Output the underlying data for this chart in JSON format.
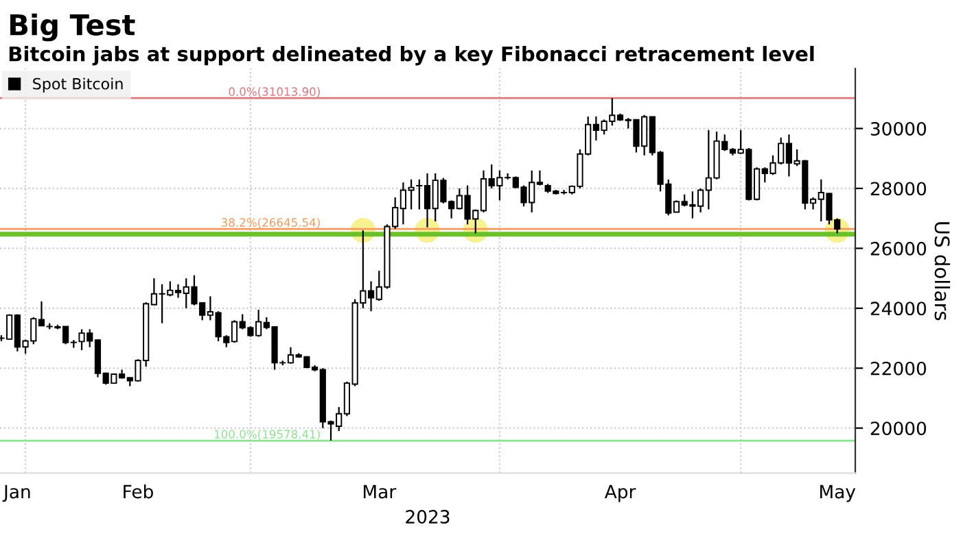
{
  "chart_data": {
    "type": "candlestick",
    "title": "Big Test",
    "subtitle": "Bitcoin jabs at support delineated by a key Fibonacci retracement level",
    "xlabel": "2023",
    "ylabel": "US dollars",
    "ylim": [
      18500,
      32000
    ],
    "yticks": [
      20000,
      22000,
      24000,
      26000,
      28000,
      30000
    ],
    "xlim": [
      "2023-01-27T20:00",
      "2023-05-14T06:00"
    ],
    "xticks": [
      {
        "value": "2023-01-30",
        "label": "Jan"
      },
      {
        "value": "2023-01-31",
        "label": null
      },
      {
        "value": "2023-02-14",
        "label": "Feb"
      },
      {
        "value": "2023-02-28",
        "label": null
      },
      {
        "value": "2023-03-16",
        "label": "Mar"
      },
      {
        "value": "2023-03-31",
        "label": null
      },
      {
        "value": "2023-04-15",
        "label": "Apr"
      },
      {
        "value": "2023-04-30",
        "label": null
      },
      {
        "value": "2023-05-12",
        "label": "May"
      }
    ],
    "grid": true,
    "legend": "top left",
    "ref_lines": [
      {
        "axis": "y",
        "value": 31013.9,
        "label": "0.0%(31013.90)",
        "color": "#d9777a"
      },
      {
        "axis": "y",
        "value": 26645.54,
        "label": "38.2%(26645.54)",
        "color": "#f29b5c"
      },
      {
        "axis": "y",
        "value": 26470,
        "label": null,
        "color": "#6cc02a"
      },
      {
        "axis": "y",
        "value": 19578.41,
        "label": "100.0%(19578.41)",
        "color": "#8fe28f"
      }
    ],
    "series": [
      {
        "name": "Spot Bitcoin",
        "color": "#000000",
        "x": [
          "2023-01-28",
          "2023-01-29",
          "2023-01-30",
          "2023-01-31",
          "2023-02-01",
          "2023-02-02",
          "2023-02-03",
          "2023-02-04",
          "2023-02-05",
          "2023-02-06",
          "2023-02-07",
          "2023-02-08",
          "2023-02-09",
          "2023-02-10",
          "2023-02-11",
          "2023-02-12",
          "2023-02-13",
          "2023-02-14",
          "2023-02-15",
          "2023-02-16",
          "2023-02-17",
          "2023-02-18",
          "2023-02-19",
          "2023-02-20",
          "2023-02-21",
          "2023-02-22",
          "2023-02-23",
          "2023-02-24",
          "2023-02-25",
          "2023-02-26",
          "2023-02-27",
          "2023-02-28",
          "2023-03-01",
          "2023-03-02",
          "2023-03-03",
          "2023-03-04",
          "2023-03-05",
          "2023-03-06",
          "2023-03-07",
          "2023-03-08",
          "2023-03-09",
          "2023-03-10",
          "2023-03-11",
          "2023-03-12",
          "2023-03-13",
          "2023-03-14",
          "2023-03-15",
          "2023-03-16",
          "2023-03-17",
          "2023-03-18",
          "2023-03-19",
          "2023-03-20",
          "2023-03-21",
          "2023-03-22",
          "2023-03-23",
          "2023-03-24",
          "2023-03-25",
          "2023-03-26",
          "2023-03-27",
          "2023-03-28",
          "2023-03-29",
          "2023-03-30",
          "2023-03-31",
          "2023-04-01",
          "2023-04-02",
          "2023-04-03",
          "2023-04-04",
          "2023-04-05",
          "2023-04-06",
          "2023-04-07",
          "2023-04-08",
          "2023-04-09",
          "2023-04-10",
          "2023-04-11",
          "2023-04-12",
          "2023-04-13",
          "2023-04-14",
          "2023-04-15",
          "2023-04-16",
          "2023-04-17",
          "2023-04-18",
          "2023-04-19",
          "2023-04-20",
          "2023-04-21",
          "2023-04-22",
          "2023-04-23",
          "2023-04-24",
          "2023-04-25",
          "2023-04-26",
          "2023-04-27",
          "2023-04-28",
          "2023-04-29",
          "2023-04-30",
          "2023-05-01",
          "2023-05-02",
          "2023-05-03",
          "2023-05-04",
          "2023-05-05",
          "2023-05-06",
          "2023-05-07",
          "2023-05-08",
          "2023-05-09",
          "2023-05-10",
          "2023-05-11",
          "2023-05-12"
        ],
        "ohlc": [
          [
            23000,
            23100,
            22900,
            23000
          ],
          [
            22970,
            23800,
            22950,
            23770
          ],
          [
            23770,
            23800,
            22560,
            22710
          ],
          [
            22710,
            22950,
            22480,
            22910
          ],
          [
            22910,
            23700,
            22800,
            23650
          ],
          [
            23620,
            24230,
            23400,
            23420
          ],
          [
            23390,
            23500,
            23300,
            23390
          ],
          [
            23380,
            23450,
            23300,
            23350
          ],
          [
            23390,
            23400,
            22800,
            22860
          ],
          [
            22860,
            22940,
            22680,
            22860
          ],
          [
            22890,
            23300,
            22600,
            23170
          ],
          [
            23170,
            23300,
            22700,
            22910
          ],
          [
            22940,
            22960,
            21700,
            21830
          ],
          [
            21830,
            21850,
            21450,
            21500
          ],
          [
            21500,
            21820,
            21480,
            21800
          ],
          [
            21800,
            21950,
            21650,
            21680
          ],
          [
            21680,
            21700,
            21400,
            21580
          ],
          [
            21580,
            22300,
            21550,
            22260
          ],
          [
            22260,
            24200,
            22050,
            24150
          ],
          [
            24120,
            25000,
            24100,
            24480
          ],
          [
            24480,
            24800,
            23500,
            24480
          ],
          [
            24450,
            24900,
            24400,
            24600
          ],
          [
            24590,
            24800,
            24350,
            24530
          ],
          [
            24500,
            25000,
            24000,
            24710
          ],
          [
            24710,
            25100,
            24100,
            24150
          ],
          [
            24180,
            24200,
            23600,
            23770
          ],
          [
            23770,
            24400,
            23600,
            23880
          ],
          [
            23850,
            23900,
            22900,
            23050
          ],
          [
            23050,
            23100,
            22700,
            22860
          ],
          [
            22890,
            23600,
            22850,
            23550
          ],
          [
            23550,
            23800,
            23300,
            23350
          ],
          [
            23350,
            23400,
            23050,
            23090
          ],
          [
            23090,
            23950,
            23050,
            23550
          ],
          [
            23520,
            23700,
            23300,
            23360
          ],
          [
            23380,
            23400,
            21950,
            22180
          ],
          [
            22180,
            22250,
            22100,
            22180
          ],
          [
            22180,
            22700,
            22150,
            22440
          ],
          [
            22440,
            22500,
            22350,
            22380
          ],
          [
            22380,
            22400,
            22000,
            22030
          ],
          [
            22030,
            22100,
            21900,
            21950
          ],
          [
            21950,
            22000,
            20000,
            20210
          ],
          [
            20210,
            20250,
            19580,
            20140
          ],
          [
            20060,
            20700,
            19900,
            20480
          ],
          [
            20480,
            21550,
            20400,
            21500
          ],
          [
            21470,
            24300,
            21400,
            24180
          ],
          [
            24180,
            26600,
            24000,
            24580
          ],
          [
            24580,
            24900,
            23900,
            24350
          ],
          [
            24300,
            25250,
            24250,
            24710
          ],
          [
            24710,
            26800,
            24650,
            26730
          ],
          [
            26730,
            27700,
            26650,
            27360
          ],
          [
            27330,
            28200,
            26800,
            27940
          ],
          [
            27940,
            28300,
            27300,
            28030
          ],
          [
            28090,
            28300,
            27300,
            28090
          ],
          [
            28090,
            28500,
            26700,
            27330
          ],
          [
            27330,
            28500,
            26900,
            28270
          ],
          [
            28270,
            28350,
            27500,
            27560
          ],
          [
            27560,
            27600,
            27000,
            27330
          ],
          [
            27330,
            28000,
            27300,
            27760
          ],
          [
            27760,
            28100,
            26800,
            26980
          ],
          [
            26980,
            27300,
            26500,
            27260
          ],
          [
            27260,
            28600,
            27200,
            28320
          ],
          [
            28320,
            28800,
            28000,
            28090
          ],
          [
            28090,
            28600,
            27600,
            28360
          ],
          [
            28360,
            28500,
            28300,
            28360
          ],
          [
            28360,
            28400,
            28000,
            28040
          ],
          [
            28040,
            28100,
            27400,
            27530
          ],
          [
            27530,
            28600,
            27200,
            28200
          ],
          [
            28200,
            28600,
            28100,
            28140
          ],
          [
            28090,
            28150,
            27850,
            27910
          ],
          [
            27910,
            27950,
            27800,
            27830
          ],
          [
            27860,
            27950,
            27800,
            27860
          ],
          [
            27860,
            28100,
            27800,
            28070
          ],
          [
            28070,
            29300,
            28000,
            29150
          ],
          [
            29150,
            30400,
            29100,
            30130
          ],
          [
            30130,
            30400,
            29600,
            29940
          ],
          [
            29940,
            30300,
            29800,
            30240
          ],
          [
            30240,
            31010,
            30100,
            30440
          ],
          [
            30440,
            30500,
            30250,
            30290
          ],
          [
            30290,
            30350,
            30000,
            30270
          ],
          [
            30290,
            30300,
            29200,
            29410
          ],
          [
            29410,
            30450,
            29100,
            30390
          ],
          [
            30390,
            30400,
            29100,
            29200
          ],
          [
            29200,
            29250,
            27900,
            28140
          ],
          [
            28140,
            28300,
            27100,
            27180
          ],
          [
            27210,
            27600,
            27200,
            27560
          ],
          [
            27560,
            27800,
            27400,
            27450
          ],
          [
            27450,
            27900,
            27000,
            27410
          ],
          [
            27410,
            28000,
            27200,
            27940
          ],
          [
            27940,
            29950,
            27300,
            28350
          ],
          [
            28350,
            29900,
            28300,
            29580
          ],
          [
            29560,
            29800,
            29250,
            29300
          ],
          [
            29300,
            29350,
            29100,
            29180
          ],
          [
            29180,
            29950,
            29150,
            29300
          ],
          [
            29300,
            29350,
            27600,
            27640
          ],
          [
            27640,
            28700,
            27600,
            28650
          ],
          [
            28650,
            28700,
            28200,
            28500
          ],
          [
            28500,
            29100,
            28450,
            28850
          ],
          [
            28850,
            29700,
            28800,
            29500
          ],
          [
            29500,
            29800,
            28400,
            28850
          ],
          [
            28820,
            29300,
            28750,
            28920
          ],
          [
            28920,
            28950,
            27300,
            27510
          ],
          [
            27510,
            27700,
            27300,
            27640
          ],
          [
            27640,
            28300,
            26900,
            27860
          ],
          [
            27830,
            27850,
            26800,
            26950
          ],
          [
            26950,
            27000,
            26500,
            26650
          ]
        ]
      },
      {
        "type": "scatter",
        "color": "#f3e84a",
        "marker": "circle",
        "x": [
          "2023-03-14",
          "2023-03-22",
          "2023-03-28",
          "2023-05-12"
        ],
        "values": [
          26600,
          26600,
          26600,
          26600
        ]
      }
    ]
  }
}
